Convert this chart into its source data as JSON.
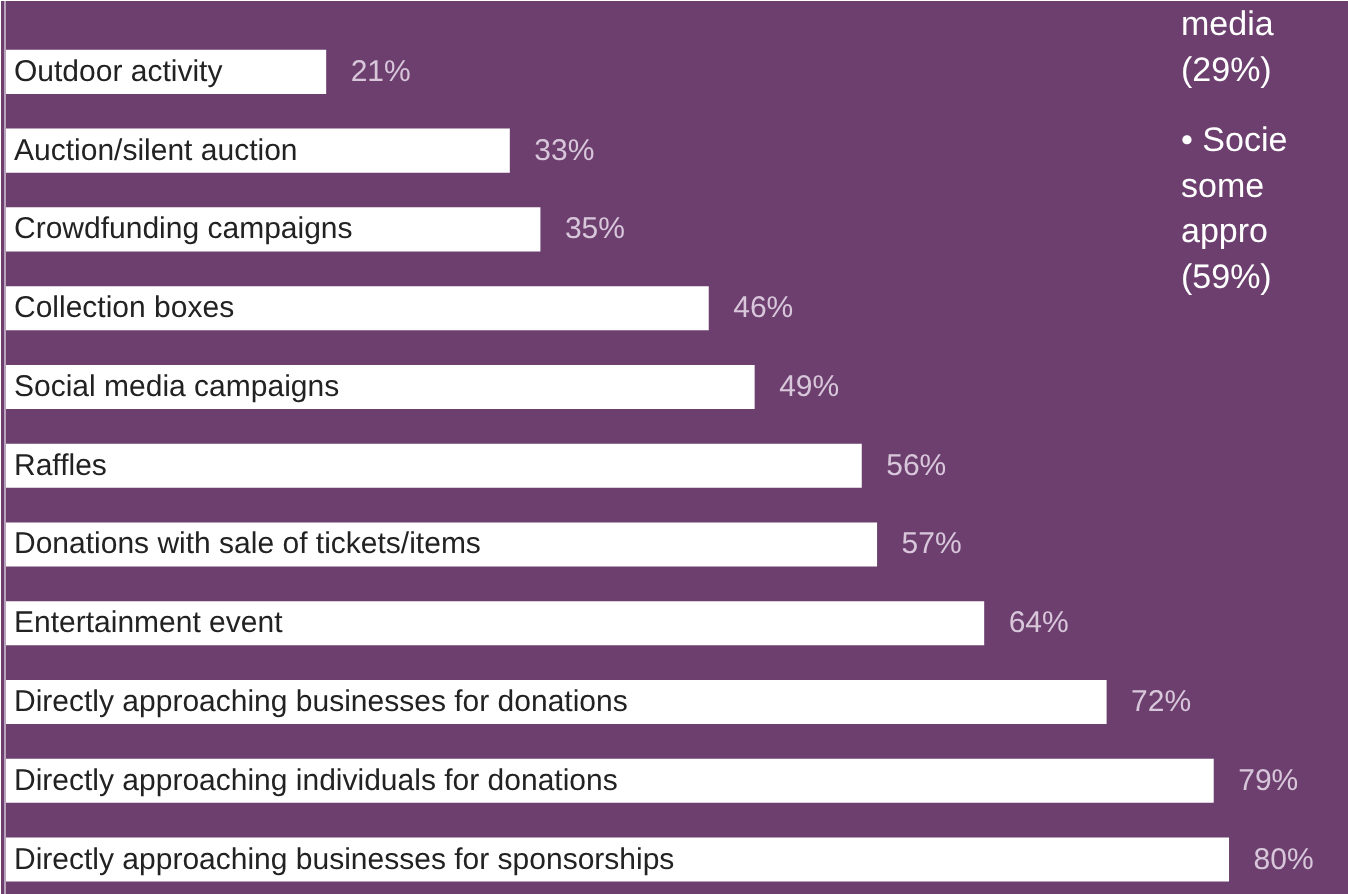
{
  "chart_data": {
    "type": "bar",
    "orientation": "horizontal",
    "data_labels": true,
    "grid": false,
    "categories": [
      "Outdoor activity",
      "Auction/silent auction",
      "Crowdfunding campaigns",
      "Collection boxes",
      "Social media campaigns",
      "Raffles",
      "Donations with sale of tickets/items",
      "Entertainment event",
      "Directly approaching businesses for donations",
      "Directly approaching individuals for donations",
      "Directly approaching businesses for sponsorships"
    ],
    "values": [
      21,
      33,
      35,
      46,
      49,
      56,
      57,
      64,
      72,
      79,
      80
    ],
    "color": "#ffffff",
    "value_labels": [
      "21%",
      "33%",
      "35%",
      "46%",
      "49%",
      "56%",
      "57%",
      "64%",
      "72%",
      "79%",
      "80%"
    ],
    "annotations": [
      "media\n(29%)",
      "• Socie\n   some\n   appro\n   (59%)"
    ]
  }
}
